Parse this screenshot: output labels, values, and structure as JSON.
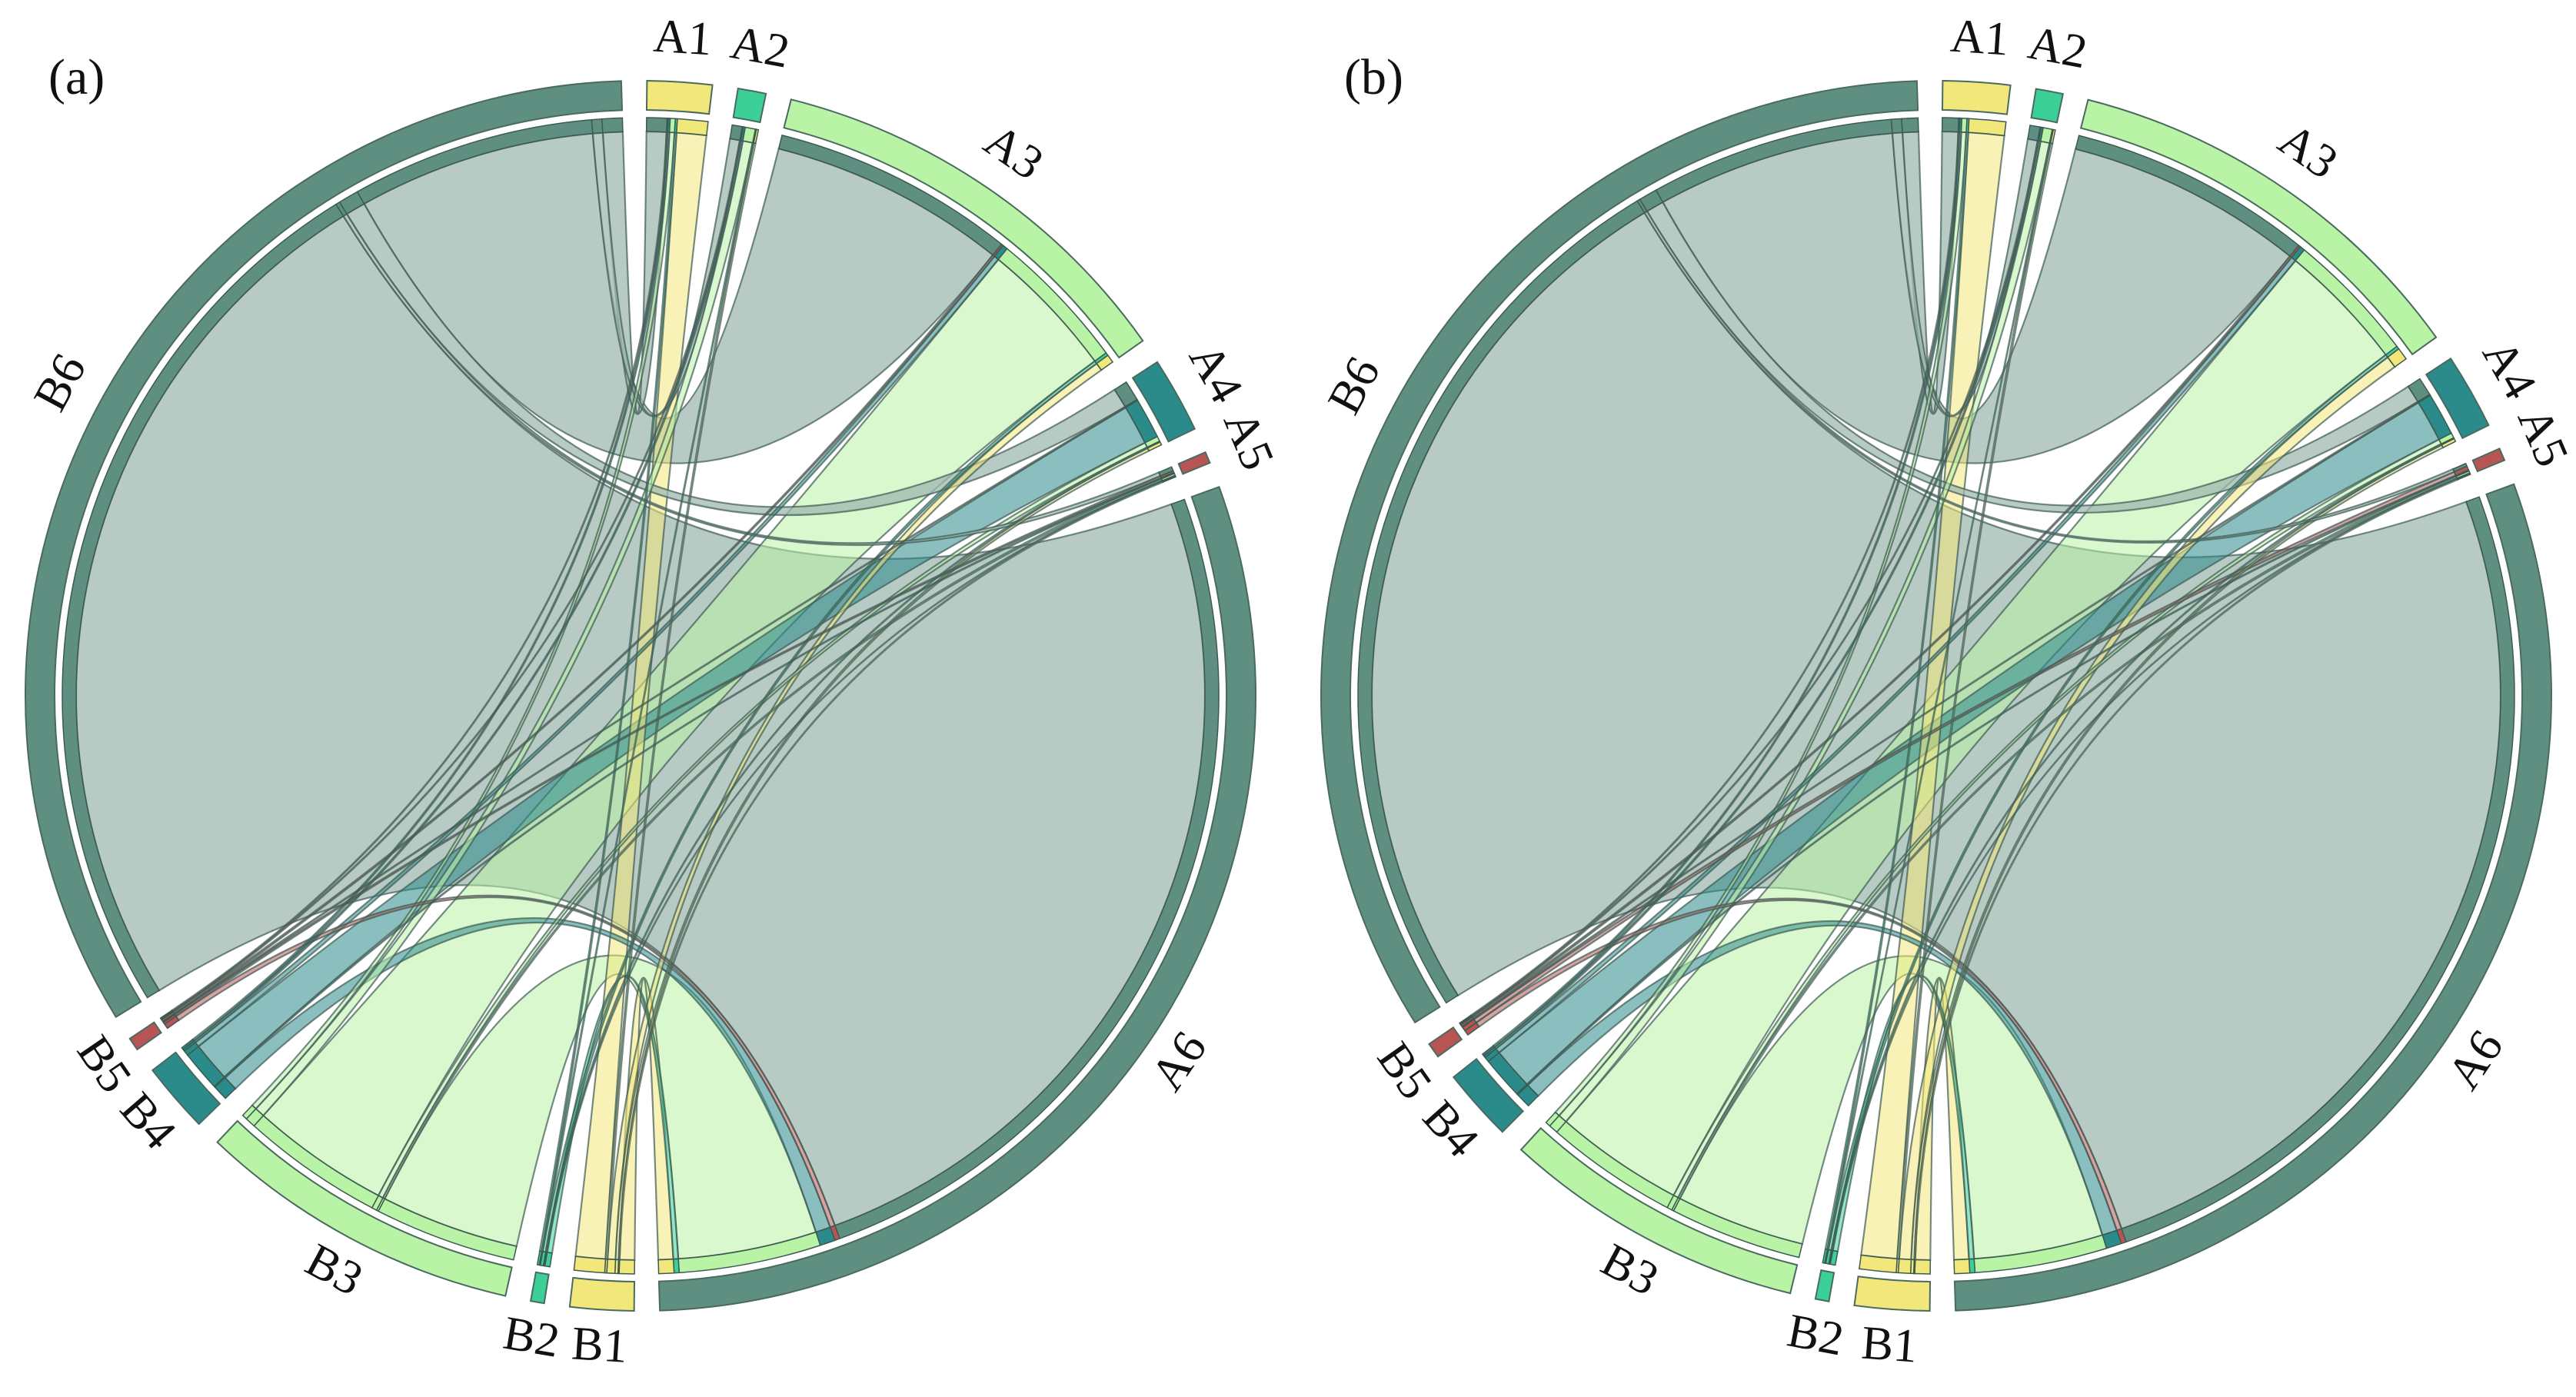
{
  "chart_data": [
    {
      "type": "chord",
      "panel_label": "(a)",
      "sources": [
        "A1",
        "A2",
        "A3",
        "A4",
        "A5",
        "A6"
      ],
      "targets": [
        "B1",
        "B2",
        "B3",
        "B4",
        "B5",
        "B6"
      ],
      "colors": {
        "1": "#f2e77a",
        "2": "#3ccf98",
        "3": "#b9f3a6",
        "4": "#2b8a8a",
        "5": "#b75555",
        "6": "#5f8f81"
      },
      "matrix": [
        [
          3.0,
          0.2,
          0.5,
          0.2,
          0.1,
          2.0
        ],
        [
          0.2,
          0.1,
          1.0,
          0.2,
          0.1,
          1.0
        ],
        [
          0.8,
          0.3,
          14.0,
          0.5,
          0.2,
          24.0
        ],
        [
          0.3,
          0.1,
          0.5,
          4.0,
          0.1,
          2.0
        ],
        [
          0.1,
          0.05,
          0.2,
          0.1,
          0.2,
          0.4
        ],
        [
          1.5,
          0.5,
          14.0,
          1.5,
          0.5,
          88.0
        ]
      ]
    },
    {
      "type": "chord",
      "panel_label": "(b)",
      "sources": [
        "A1",
        "A2",
        "A3",
        "A4",
        "A5",
        "A6"
      ],
      "targets": [
        "B1",
        "B2",
        "B3",
        "B4",
        "B5",
        "B6"
      ],
      "colors": {
        "1": "#f2e77a",
        "2": "#3ccf98",
        "3": "#b9f3a6",
        "4": "#2b8a8a",
        "5": "#b75555",
        "6": "#5f8f81"
      },
      "matrix": [
        [
          3.6,
          0.2,
          0.5,
          0.2,
          0.1,
          1.6
        ],
        [
          0.2,
          0.1,
          0.9,
          0.2,
          0.1,
          1.0
        ],
        [
          1.2,
          0.3,
          13.0,
          0.5,
          0.2,
          24.0
        ],
        [
          0.3,
          0.1,
          0.5,
          4.2,
          0.1,
          1.8
        ],
        [
          0.1,
          0.05,
          0.2,
          0.1,
          0.4,
          0.3
        ],
        [
          1.5,
          0.5,
          13.0,
          1.5,
          0.5,
          89.0
        ]
      ]
    }
  ]
}
